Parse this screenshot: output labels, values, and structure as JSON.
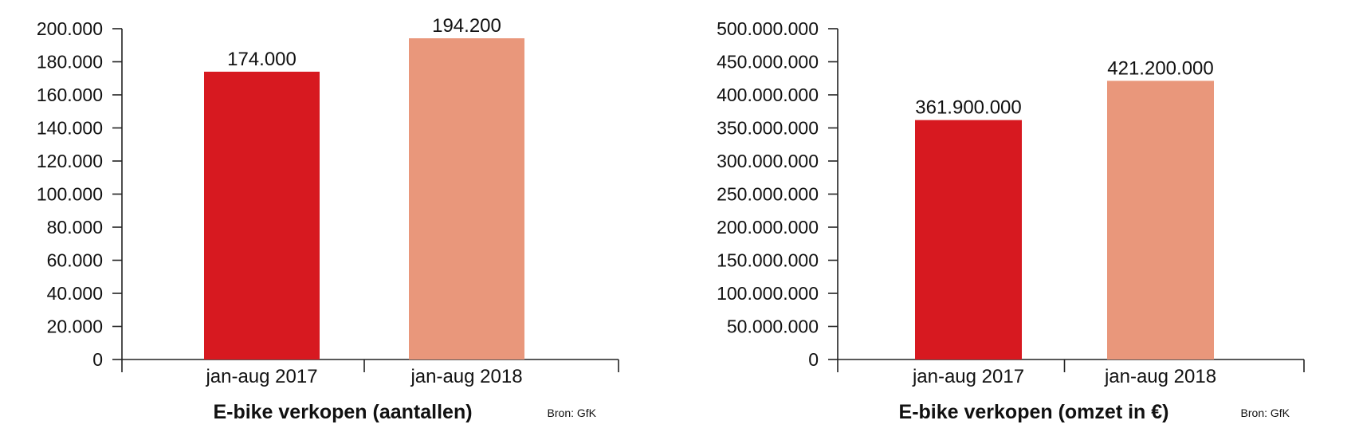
{
  "chart_data": [
    {
      "type": "bar",
      "title": "E-bike verkopen (aantallen)",
      "source": "Bron: GfK",
      "categories": [
        "jan-aug 2017",
        "jan-aug 2018"
      ],
      "values": [
        174000,
        194200
      ],
      "value_labels": [
        "174.000",
        "194.200"
      ],
      "colors": [
        "#d71920",
        "#e9977b"
      ],
      "ylim": [
        0,
        200000
      ],
      "yticks": [
        0,
        20000,
        40000,
        60000,
        80000,
        100000,
        120000,
        140000,
        160000,
        180000,
        200000
      ],
      "ytick_labels": [
        "0",
        "20.000",
        "40.000",
        "60.000",
        "80.000",
        "100.000",
        "120.000",
        "140.000",
        "160.000",
        "180.000",
        "200.000"
      ],
      "grid": false,
      "legend": "none"
    },
    {
      "type": "bar",
      "title": "E-bike verkopen (omzet in €)",
      "source": "Bron: GfK",
      "categories": [
        "jan-aug 2017",
        "jan-aug 2018"
      ],
      "values": [
        361900000,
        421200000
      ],
      "value_labels": [
        "361.900.000",
        "421.200.000"
      ],
      "colors": [
        "#d71920",
        "#e9977b"
      ],
      "ylim": [
        0,
        500000000
      ],
      "yticks": [
        0,
        50000000,
        100000000,
        150000000,
        200000000,
        250000000,
        300000000,
        350000000,
        400000000,
        450000000,
        500000000
      ],
      "ytick_labels": [
        "0",
        "50.000.000",
        "100.000.000",
        "150.000.000",
        "200.000.000",
        "250.000.000",
        "300.000.000",
        "350.000.000",
        "400.000.000",
        "450.000.000",
        "500.000.000"
      ],
      "grid": false,
      "legend": "none"
    }
  ]
}
